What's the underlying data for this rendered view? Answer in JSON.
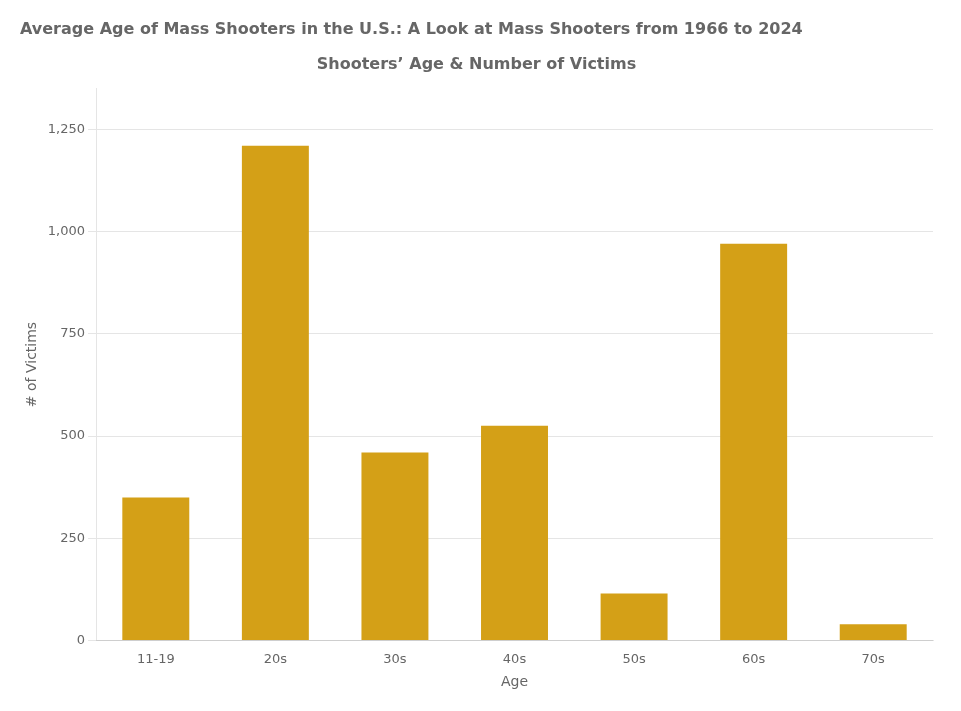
{
  "chart_data": {
    "type": "bar",
    "title": "Average Age of Mass Shooters in the U.S.: A Look at Mass Shooters from 1966 to 2024",
    "subtitle": "Shooters’ Age & Number of Victims",
    "x_label": "Age",
    "y_label": "# of Victims",
    "categories": [
      "11-19",
      "20s",
      "30s",
      "40s",
      "50s",
      "60s",
      "70s"
    ],
    "values": [
      350,
      1210,
      460,
      525,
      115,
      970,
      40
    ],
    "color": "#D4A017",
    "ylim": [
      0,
      1350
    ],
    "yticks": [
      0,
      250,
      500,
      750,
      {
        "value": 1000,
        "label": "1,000"
      },
      {
        "value": 1250,
        "label": "1,250"
      }
    ],
    "grid": true
  }
}
